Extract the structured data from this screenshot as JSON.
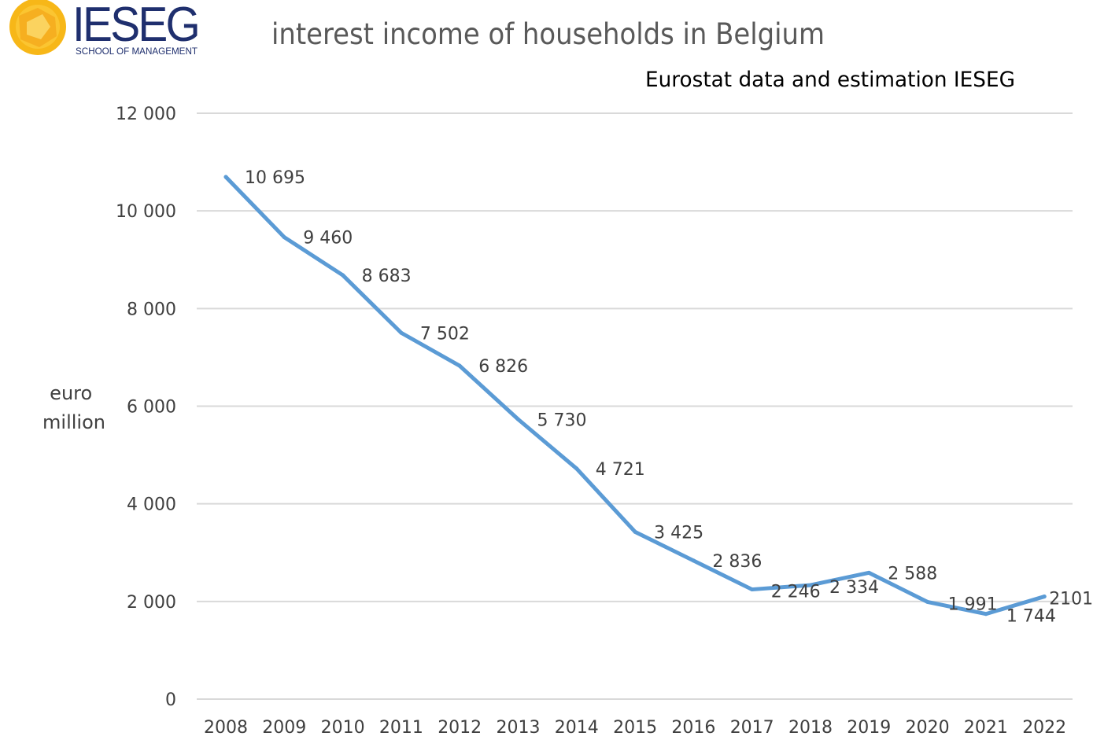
{
  "logo": {
    "name": "IESEG",
    "tagline": "SCHOOL OF MANAGEMENT"
  },
  "colors": {
    "line": "#5b9bd5",
    "grid": "#d9d9d9",
    "text": "#404040",
    "logo_blue": "#1f2f6e",
    "logo_sun": "#f7b718"
  },
  "chart_data": {
    "type": "line",
    "title": "interest income of households in Belgium",
    "subtitle": "Eurostat data and estimation IESEG",
    "ylabel": "euro million",
    "xlabel": "",
    "ylim": [
      0,
      12000
    ],
    "yticks": [
      0,
      2000,
      4000,
      6000,
      8000,
      10000,
      12000
    ],
    "ytick_labels": [
      "0",
      "2 000",
      "4 000",
      "6 000",
      "8 000",
      "10 000",
      "12 000"
    ],
    "grid": true,
    "categories": [
      "2008",
      "2009",
      "2010",
      "2011",
      "2012",
      "2013",
      "2014",
      "2015",
      "2016",
      "2017",
      "2018",
      "2019",
      "2020",
      "2021",
      "2022"
    ],
    "series": [
      {
        "values": [
          10695,
          9460,
          8683,
          7502,
          6826,
          5730,
          4721,
          3425,
          2836,
          2246,
          2334,
          2588,
          1991,
          1744,
          2101
        ],
        "labels": [
          "10 695",
          "9 460",
          "8 683",
          "7 502",
          "6 826",
          "5 730",
          "4 721",
          "3 425",
          "2 836",
          "2 246",
          "2 334",
          "2 588",
          "1 991",
          "1 744",
          "2101"
        ]
      }
    ]
  }
}
